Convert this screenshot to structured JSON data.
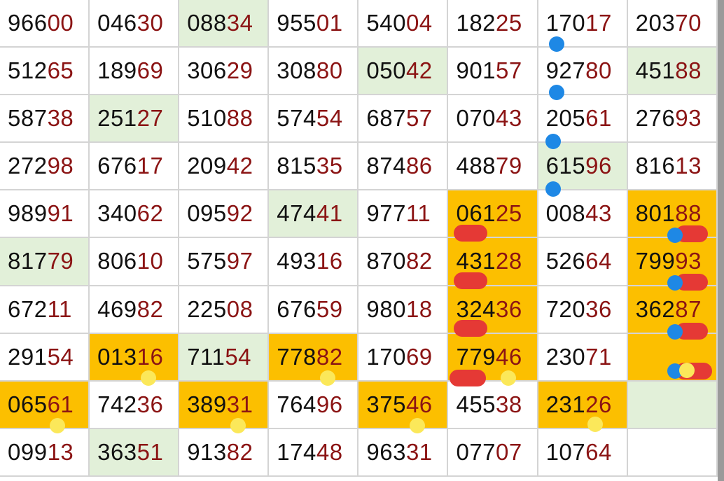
{
  "colors": {
    "orange": "#fcbf00",
    "green": "#e2f0d9",
    "digit_tail": "#8b1414",
    "marker_blue": "#1e88e5",
    "marker_red": "#e53935",
    "marker_yellow": "#fbe85a"
  },
  "rows": [
    [
      {
        "n": "96600",
        "bg": "white"
      },
      {
        "n": "04630",
        "bg": "white"
      },
      {
        "n": "08834",
        "bg": "green"
      },
      {
        "n": "95501",
        "bg": "white"
      },
      {
        "n": "54004",
        "bg": "white"
      },
      {
        "n": "18225",
        "bg": "white"
      },
      {
        "n": "17017",
        "bg": "white"
      },
      {
        "n": "20370",
        "bg": "white"
      }
    ],
    [
      {
        "n": "51265",
        "bg": "white"
      },
      {
        "n": "18969",
        "bg": "white"
      },
      {
        "n": "30629",
        "bg": "white"
      },
      {
        "n": "30880",
        "bg": "white"
      },
      {
        "n": "05042",
        "bg": "green"
      },
      {
        "n": "90157",
        "bg": "white"
      },
      {
        "n": "92780",
        "bg": "white"
      },
      {
        "n": "45188",
        "bg": "green"
      }
    ],
    [
      {
        "n": "58738",
        "bg": "white"
      },
      {
        "n": "25127",
        "bg": "green"
      },
      {
        "n": "51088",
        "bg": "white"
      },
      {
        "n": "57454",
        "bg": "white"
      },
      {
        "n": "68757",
        "bg": "white"
      },
      {
        "n": "07043",
        "bg": "white"
      },
      {
        "n": "20561",
        "bg": "white"
      },
      {
        "n": "27693",
        "bg": "white"
      }
    ],
    [
      {
        "n": "27298",
        "bg": "white"
      },
      {
        "n": "67617",
        "bg": "white"
      },
      {
        "n": "20942",
        "bg": "white"
      },
      {
        "n": "81535",
        "bg": "white"
      },
      {
        "n": "87486",
        "bg": "white"
      },
      {
        "n": "48879",
        "bg": "white"
      },
      {
        "n": "61596",
        "bg": "green"
      },
      {
        "n": "81613",
        "bg": "white"
      }
    ],
    [
      {
        "n": "98991",
        "bg": "white"
      },
      {
        "n": "34062",
        "bg": "white"
      },
      {
        "n": "09592",
        "bg": "white"
      },
      {
        "n": "47441",
        "bg": "green"
      },
      {
        "n": "97711",
        "bg": "white"
      },
      {
        "n": "06125",
        "bg": "orange"
      },
      {
        "n": "00843",
        "bg": "white"
      },
      {
        "n": "80188",
        "bg": "orange"
      }
    ],
    [
      {
        "n": "81779",
        "bg": "green"
      },
      {
        "n": "80610",
        "bg": "white"
      },
      {
        "n": "57597",
        "bg": "white"
      },
      {
        "n": "49316",
        "bg": "white"
      },
      {
        "n": "87082",
        "bg": "white"
      },
      {
        "n": "43128",
        "bg": "orange"
      },
      {
        "n": "52664",
        "bg": "white"
      },
      {
        "n": "79993",
        "bg": "orange"
      }
    ],
    [
      {
        "n": "67211",
        "bg": "white"
      },
      {
        "n": "46982",
        "bg": "white"
      },
      {
        "n": "22508",
        "bg": "white"
      },
      {
        "n": "67659",
        "bg": "white"
      },
      {
        "n": "98018",
        "bg": "white"
      },
      {
        "n": "32436",
        "bg": "orange"
      },
      {
        "n": "72036",
        "bg": "white"
      },
      {
        "n": "36287",
        "bg": "orange"
      }
    ],
    [
      {
        "n": "29154",
        "bg": "white"
      },
      {
        "n": "01316",
        "bg": "orange"
      },
      {
        "n": "71154",
        "bg": "green"
      },
      {
        "n": "77882",
        "bg": "orange"
      },
      {
        "n": "17069",
        "bg": "white"
      },
      {
        "n": "77946",
        "bg": "orange"
      },
      {
        "n": "23071",
        "bg": "white"
      },
      {
        "n": "",
        "bg": "orange"
      }
    ],
    [
      {
        "n": "06561",
        "bg": "orange"
      },
      {
        "n": "74236",
        "bg": "white"
      },
      {
        "n": "38931",
        "bg": "orange"
      },
      {
        "n": "76496",
        "bg": "white"
      },
      {
        "n": "37546",
        "bg": "orange"
      },
      {
        "n": "45538",
        "bg": "white"
      },
      {
        "n": "23126",
        "bg": "orange"
      },
      {
        "n": "",
        "bg": "green"
      }
    ],
    [
      {
        "n": "09913",
        "bg": "white"
      },
      {
        "n": "36351",
        "bg": "green"
      },
      {
        "n": "91382",
        "bg": "white"
      },
      {
        "n": "17448",
        "bg": "white"
      },
      {
        "n": "96331",
        "bg": "white"
      },
      {
        "n": "07707",
        "bg": "white"
      },
      {
        "n": "10764",
        "bg": "white"
      },
      {
        "n": "",
        "bg": "white"
      }
    ]
  ]
}
